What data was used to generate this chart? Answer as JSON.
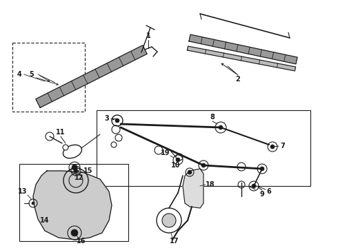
{
  "bg_color": "#ffffff",
  "line_color": "#1a1a1a",
  "fig_width": 4.9,
  "fig_height": 3.6,
  "dpi": 100,
  "label_fontsize": 7.0,
  "label_fontsize_small": 6.5
}
